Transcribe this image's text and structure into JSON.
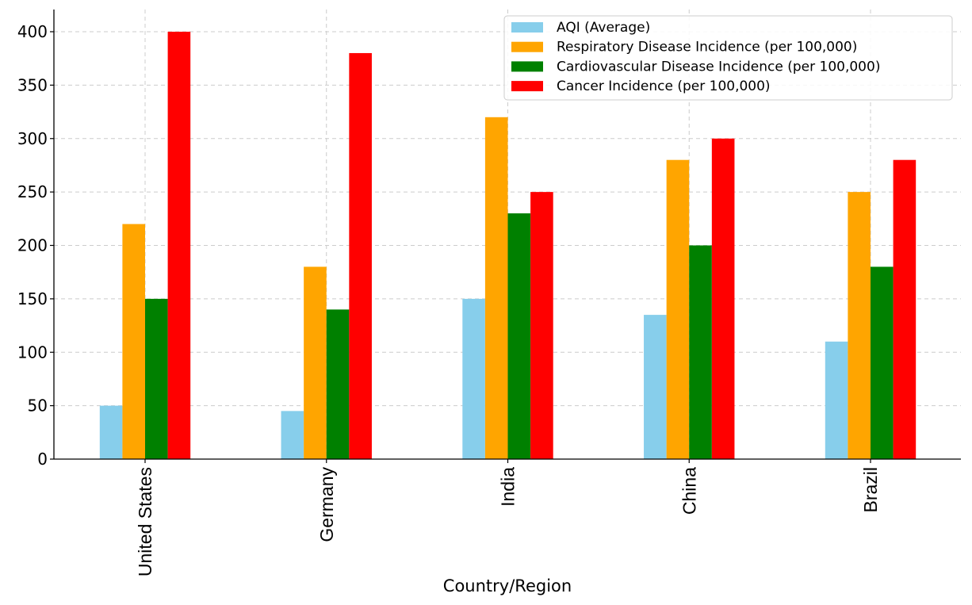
{
  "chart_data": {
    "type": "bar",
    "title": "",
    "xlabel": "Country/Region",
    "ylabel": "",
    "categories": [
      "United States",
      "Germany",
      "India",
      "China",
      "Brazil"
    ],
    "series": [
      {
        "name": "AQI (Average)",
        "color": "#87ceeb",
        "values": [
          50,
          45,
          150,
          135,
          110
        ]
      },
      {
        "name": "Respiratory Disease Incidence (per 100,000)",
        "color": "#ffa500",
        "values": [
          220,
          180,
          320,
          280,
          250
        ]
      },
      {
        "name": "Cardiovascular Disease Incidence (per 100,000)",
        "color": "#008000",
        "values": [
          150,
          140,
          230,
          200,
          180
        ]
      },
      {
        "name": "Cancer Incidence (per 100,000)",
        "color": "#ff0000",
        "values": [
          400,
          380,
          250,
          300,
          280
        ]
      }
    ],
    "ylim": [
      0,
      420
    ],
    "yticks": [
      0,
      50,
      100,
      150,
      200,
      250,
      300,
      350,
      400
    ],
    "grid": true,
    "legend_position": "top-right",
    "x_tick_rotation": "vertical"
  }
}
